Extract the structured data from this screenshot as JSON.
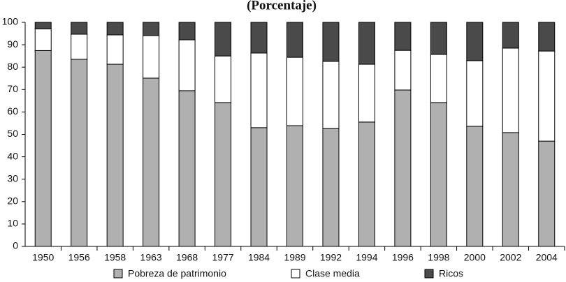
{
  "chart_data": {
    "type": "stacked_bar",
    "title": "(Porcentaje)",
    "categories": [
      "1950",
      "1956",
      "1958",
      "1963",
      "1968",
      "1977",
      "1984",
      "1989",
      "1992",
      "1994",
      "1996",
      "1998",
      "2000",
      "2002",
      "2004"
    ],
    "series": [
      {
        "name": "Pobreza de patrimonio",
        "color": "#b0b0b0",
        "values": [
          87.4,
          83.5,
          81.3,
          75.1,
          69.5,
          64.2,
          53,
          53.9,
          52.6,
          55.5,
          69.8,
          64.2,
          53.6,
          50.8,
          47
        ]
      },
      {
        "name": "Clase media",
        "color": "#ffffff",
        "values": [
          9.7,
          11.2,
          13.1,
          19,
          22.7,
          20.8,
          33.3,
          30.5,
          30,
          25.8,
          17.7,
          21.5,
          29.3,
          37.7,
          40.2
        ]
      },
      {
        "name": "Ricos",
        "color": "#4a4a4a",
        "values": [
          2.9,
          5.3,
          5.6,
          5.9,
          7.8,
          15,
          13.7,
          15.6,
          17.4,
          18.7,
          12.5,
          14.3,
          17.1,
          11.5,
          12.8
        ]
      }
    ],
    "ylim": [
      0,
      100
    ],
    "yticks": [
      0,
      10,
      20,
      30,
      40,
      50,
      60,
      70,
      80,
      90,
      100
    ]
  }
}
